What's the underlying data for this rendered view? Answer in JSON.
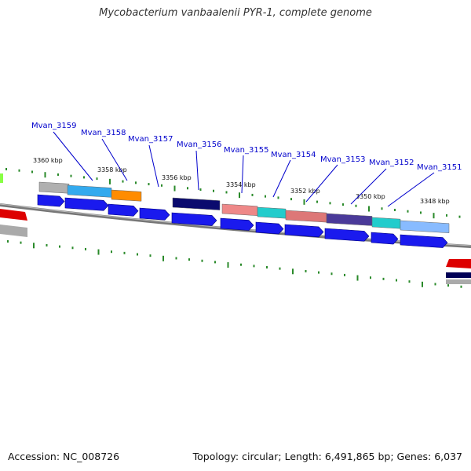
{
  "title": "Mycobacterium vanbaalenii PYR-1, complete genome",
  "footer": {
    "accession": "Accession: NC_008726",
    "summary": "Topology: circular; Length: 6,491,865 bp; Genes: 6,037"
  },
  "colors": {
    "gene_arrow": "#1a1aee",
    "backbone": "#777777",
    "tick": "#2a8a2a",
    "label": "#0000cc"
  },
  "genes": [
    {
      "name": "Mvan_3159"
    },
    {
      "name": "Mvan_3158"
    },
    {
      "name": "Mvan_3157"
    },
    {
      "name": "Mvan_3156"
    },
    {
      "name": "Mvan_3155"
    },
    {
      "name": "Mvan_3154"
    },
    {
      "name": "Mvan_3153"
    },
    {
      "name": "Mvan_3152"
    },
    {
      "name": "Mvan_3151"
    }
  ],
  "ticks": [
    {
      "label": "3360 kbp"
    },
    {
      "label": "3358 kbp"
    },
    {
      "label": "3356 kbp"
    },
    {
      "label": "3354 kbp"
    },
    {
      "label": "3352 kbp"
    },
    {
      "label": "3350 kbp"
    },
    {
      "label": "3348 kbp"
    }
  ],
  "feature_colors": [
    "#b0b0b0",
    "#33aaee",
    "#ff8c00",
    "#0a0a6e",
    "#ee8888",
    "#22cccc",
    "#dd7777",
    "#4a3a99",
    "#22cccc",
    "#88bbff",
    "#dd0000",
    "#aaaaaa",
    "#000055",
    "#88ff44"
  ]
}
